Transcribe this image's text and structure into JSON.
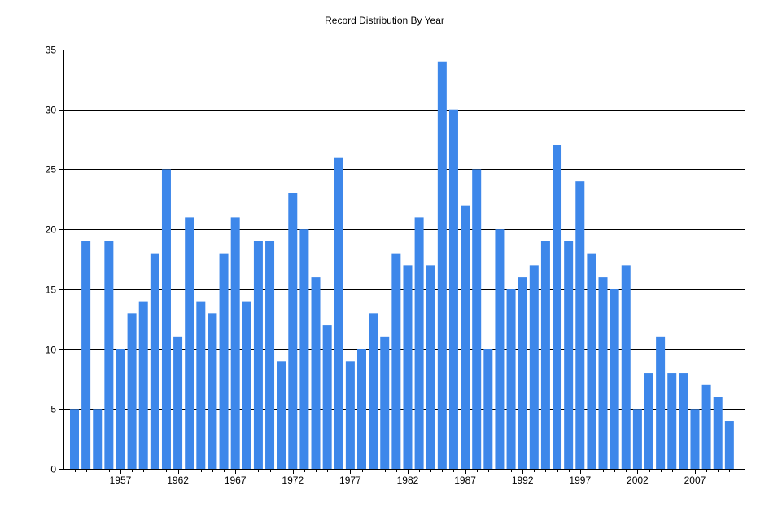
{
  "chart_data": {
    "type": "bar",
    "title": "Record Distribution By Year",
    "xlabel": "",
    "ylabel": "",
    "x": [
      1953,
      1954,
      1955,
      1956,
      1957,
      1958,
      1959,
      1960,
      1961,
      1962,
      1963,
      1964,
      1965,
      1966,
      1967,
      1968,
      1969,
      1970,
      1971,
      1972,
      1973,
      1974,
      1975,
      1976,
      1977,
      1978,
      1979,
      1980,
      1981,
      1982,
      1983,
      1984,
      1985,
      1986,
      1987,
      1988,
      1989,
      1990,
      1991,
      1992,
      1993,
      1994,
      1995,
      1996,
      1997,
      1998,
      1999,
      2000,
      2001,
      2002,
      2003,
      2004,
      2005,
      2006,
      2007,
      2008,
      2009,
      2010
    ],
    "values": [
      5,
      19,
      5,
      19,
      10,
      13,
      14,
      18,
      25,
      11,
      21,
      14,
      13,
      18,
      21,
      14,
      19,
      19,
      9,
      23,
      20,
      16,
      12,
      26,
      9,
      10,
      13,
      11,
      18,
      17,
      21,
      17,
      34,
      30,
      22,
      25,
      10,
      20,
      15,
      16,
      17,
      19,
      27,
      19,
      24,
      18,
      16,
      15,
      17,
      5,
      8,
      11,
      8,
      8,
      5,
      7,
      6,
      4
    ],
    "x_ticks": [
      "1957",
      "1962",
      "1967",
      "1972",
      "1977",
      "1982",
      "1987",
      "1992",
      "1997",
      "2002",
      "2007"
    ],
    "y_ticks": [
      "0",
      "5",
      "10",
      "15",
      "20",
      "25",
      "30",
      "35"
    ],
    "ylim": [
      0,
      35
    ],
    "grid": "horizontal",
    "bar_color": "#3d87ea",
    "grid_color": "#000000"
  }
}
